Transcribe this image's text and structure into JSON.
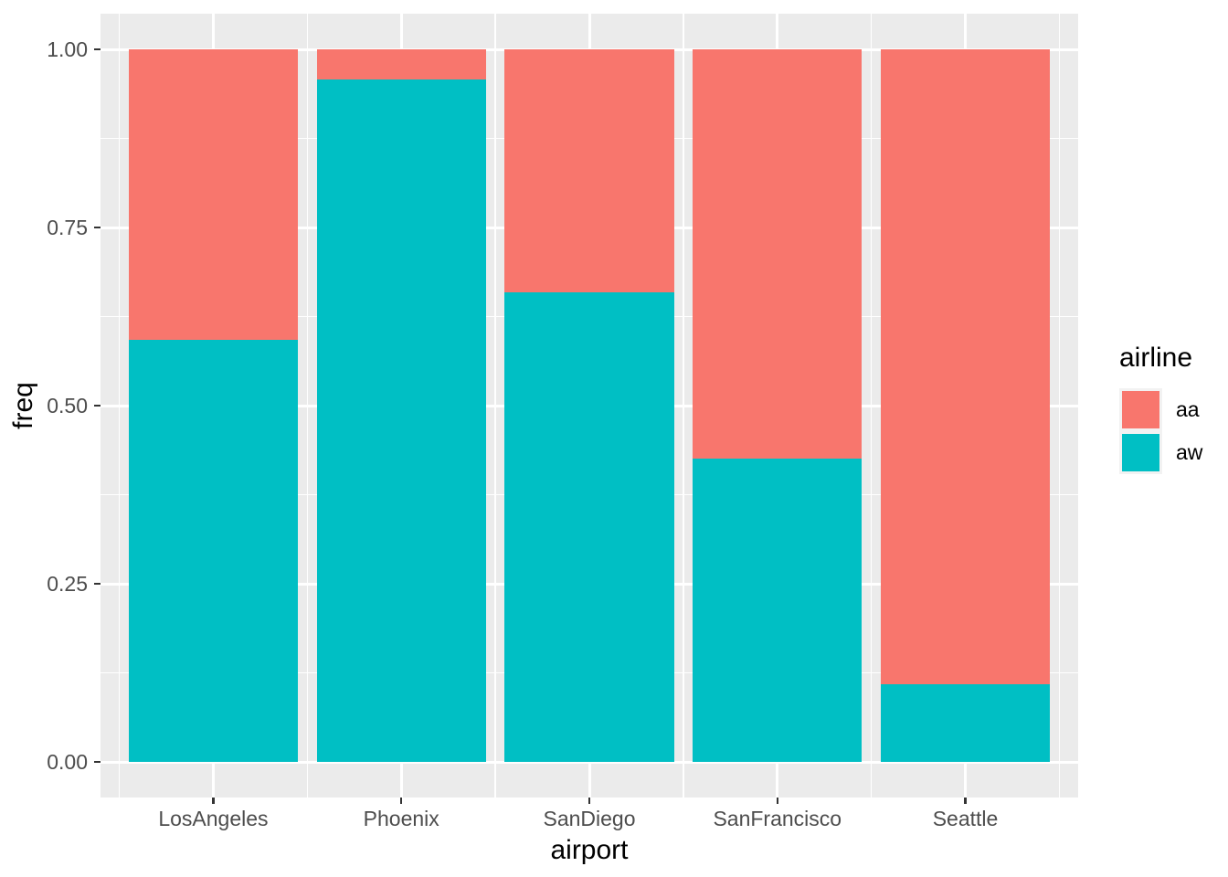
{
  "chart_data": {
    "type": "bar",
    "stacked": true,
    "title": "",
    "xlabel": "airport",
    "ylabel": "freq",
    "legend_title": "airline",
    "legend_position": "right",
    "grid": true,
    "categories": [
      "LosAngeles",
      "Phoenix",
      "SanDiego",
      "SanFrancisco",
      "Seattle"
    ],
    "series": [
      {
        "name": "aa",
        "color": "#F8766D",
        "values": [
          0.408,
          0.042,
          0.341,
          0.574,
          0.891
        ]
      },
      {
        "name": "aw",
        "color": "#00BFC4",
        "values": [
          0.592,
          0.958,
          0.659,
          0.426,
          0.109
        ]
      }
    ],
    "stack_order_bottom_to_top": [
      "aw",
      "aa"
    ],
    "ylim": [
      0,
      1
    ],
    "y_ticks": [
      "0.00",
      "0.25",
      "0.50",
      "0.75",
      "1.00"
    ],
    "y_tick_values": [
      0,
      0.25,
      0.5,
      0.75,
      1
    ],
    "y_minor_values": [
      0.125,
      0.375,
      0.625,
      0.875
    ],
    "colors": {
      "panel_bg": "#EBEBEB",
      "grid": "#FFFFFF",
      "axis_text": "#4D4D4D",
      "title_text": "#000000",
      "tick_mark": "#333333",
      "legend_key_bg": "#F2F2F2",
      "page_bg": "#FFFFFF"
    }
  }
}
